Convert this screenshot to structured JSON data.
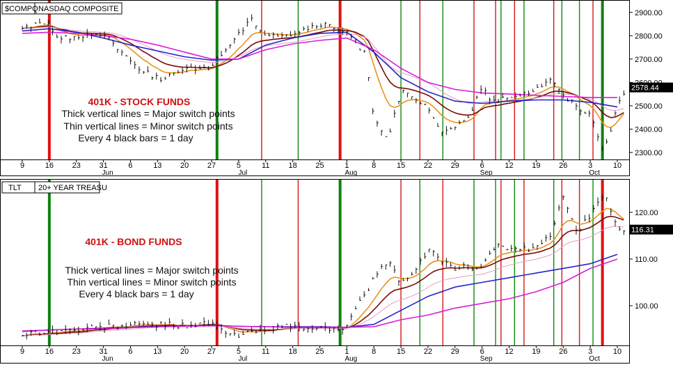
{
  "colors": {
    "background": "#ffffff",
    "frame": "#000000",
    "ma_orange": "#e8921e",
    "ma_darkred": "#7a0a0a",
    "ma_pink": "#e89ac8",
    "ma_blue": "#2424c8",
    "ma_magenta": "#d81ed8",
    "major_red": "#e01010",
    "major_green": "#108010",
    "minor_red": "#d01818",
    "minor_green": "#108a10",
    "annotation_red": "#d01010"
  },
  "x_axis": {
    "tick_labels": [
      "9",
      "16",
      "23",
      "31",
      "6",
      "13",
      "20",
      "27",
      "5",
      "11",
      "18",
      "25",
      "1",
      "8",
      "15",
      "22",
      "29",
      "6",
      "12",
      "19",
      "26",
      "3",
      "10"
    ],
    "month_labels": [
      "Jun",
      "Jul",
      "Aug",
      "Sep",
      "Oct"
    ],
    "month_label_tick_index": [
      3,
      8,
      12,
      17,
      21
    ]
  },
  "chart_data": [
    {
      "type": "line",
      "ticker": "$COMPQ",
      "title": "NASDAQ COMPOSITE",
      "last_value_label": "2578.44",
      "ylim": [
        2270,
        2950
      ],
      "y_ticks": [
        2300,
        2400,
        2500,
        2600,
        2700,
        2800,
        2900
      ],
      "y_tick_labels": [
        "2300.00",
        "2400.00",
        "2500.00",
        "2600.00",
        "2700.00",
        "2800.00",
        "2900.00"
      ],
      "daily_close_anchors": {
        "x_tick_index": [
          0,
          1,
          1.3,
          2,
          3,
          4,
          5,
          6,
          7,
          8,
          8.5,
          9,
          10,
          11,
          12,
          12.7,
          13,
          13.5,
          14,
          15,
          15.5,
          16,
          16.5,
          17,
          17.5,
          18,
          19,
          19.5,
          20,
          20.5,
          21,
          21.5,
          22,
          22.3
        ],
        "values": [
          2835,
          2855,
          2795,
          2790,
          2815,
          2690,
          2615,
          2650,
          2670,
          2810,
          2870,
          2805,
          2805,
          2850,
          2815,
          2720,
          2450,
          2360,
          2560,
          2490,
          2375,
          2410,
          2460,
          2570,
          2510,
          2540,
          2570,
          2620,
          2540,
          2500,
          2460,
          2310,
          2490,
          2570
        ]
      },
      "series": [
        {
          "type": "line",
          "color": "#2424c8",
          "y": [
            2820,
            2830,
            2815,
            2790,
            2760,
            2735,
            2710,
            2695,
            2700,
            2760,
            2790,
            2810,
            2815,
            2730,
            2620,
            2560,
            2520,
            2510,
            2520,
            2525,
            2525,
            2515,
            2495
          ]
        },
        {
          "type": "line",
          "color": "#d81ed8",
          "y": [
            2810,
            2815,
            2810,
            2800,
            2785,
            2760,
            2730,
            2700,
            2700,
            2740,
            2765,
            2780,
            2790,
            2740,
            2660,
            2600,
            2570,
            2555,
            2550,
            2545,
            2540,
            2535,
            2535
          ]
        }
      ],
      "vertical_lines": [
        {
          "x_tick_index": 1,
          "kind": "major",
          "color": "red"
        },
        {
          "x_tick_index": 7.2,
          "kind": "major",
          "color": "green"
        },
        {
          "x_tick_index": 8.85,
          "kind": "minor",
          "color": "red"
        },
        {
          "x_tick_index": 10.2,
          "kind": "minor",
          "color": "green"
        },
        {
          "x_tick_index": 11.75,
          "kind": "major",
          "color": "red"
        },
        {
          "x_tick_index": 14,
          "kind": "minor",
          "color": "green"
        },
        {
          "x_tick_index": 14.7,
          "kind": "minor",
          "color": "red"
        },
        {
          "x_tick_index": 15.55,
          "kind": "minor",
          "color": "green"
        },
        {
          "x_tick_index": 16.7,
          "kind": "minor",
          "color": "red"
        },
        {
          "x_tick_index": 17.5,
          "kind": "minor",
          "color": "red"
        },
        {
          "x_tick_index": 17.7,
          "kind": "minor",
          "color": "green"
        },
        {
          "x_tick_index": 18.2,
          "kind": "minor",
          "color": "red"
        },
        {
          "x_tick_index": 18.55,
          "kind": "minor",
          "color": "green"
        },
        {
          "x_tick_index": 19.65,
          "kind": "minor",
          "color": "red"
        },
        {
          "x_tick_index": 19.95,
          "kind": "minor",
          "color": "green"
        },
        {
          "x_tick_index": 20.6,
          "kind": "minor",
          "color": "green"
        },
        {
          "x_tick_index": 21.1,
          "kind": "minor",
          "color": "red"
        },
        {
          "x_tick_index": 21.45,
          "kind": "major",
          "color": "green"
        }
      ],
      "annotation": {
        "title": "401K - STOCK FUNDS",
        "lines": [
          "Thick vertical lines = Major switch points",
          "Thin vertical lines = Minor switch points",
          "Every 4 black bars = 1 day"
        ]
      }
    },
    {
      "type": "line",
      "ticker": "TLT",
      "title": "20+ YEAR TREASU",
      "last_value_label": "116.31",
      "ylim": [
        91.5,
        127
      ],
      "y_ticks": [
        100,
        110,
        120
      ],
      "y_tick_labels": [
        "100.00",
        "110.00",
        "120.00"
      ],
      "daily_close_anchors": {
        "x_tick_index": [
          0,
          1,
          2,
          3,
          4,
          5,
          6,
          7,
          7.5,
          8,
          9,
          10,
          11,
          12,
          13,
          13.5,
          14,
          14.5,
          15,
          16,
          17,
          17.5,
          18,
          19,
          19.5,
          20,
          20.5,
          21,
          21.5,
          22,
          22.3
        ],
        "values": [
          94,
          94.5,
          94.8,
          95.5,
          95.8,
          96,
          95.8,
          96.2,
          94.2,
          93.5,
          95.2,
          95.5,
          95,
          95.5,
          106,
          109.5,
          105,
          107,
          112,
          108,
          108.5,
          113,
          112,
          112,
          115,
          123,
          116,
          119,
          124,
          117,
          116.3
        ]
      },
      "series": [
        {
          "type": "line",
          "color": "#2424c8",
          "y": [
            94.5,
            94.8,
            95,
            95.2,
            95.4,
            95.6,
            95.7,
            95.8,
            95.6,
            95.5,
            95.5,
            95.5,
            95.4,
            96,
            99,
            102,
            104,
            105,
            106,
            107,
            108,
            109,
            111
          ]
        },
        {
          "type": "line",
          "color": "#d81ed8",
          "y": [
            94.6,
            94.8,
            95,
            95.1,
            95.3,
            95.5,
            95.6,
            95.7,
            95.6,
            95.5,
            95.4,
            95.4,
            95.4,
            95.5,
            97,
            98,
            99.5,
            100.5,
            101.5,
            103,
            105,
            108,
            110
          ]
        }
      ],
      "vertical_lines": [
        {
          "x_tick_index": 1,
          "kind": "major",
          "color": "green"
        },
        {
          "x_tick_index": 7.2,
          "kind": "major",
          "color": "red"
        },
        {
          "x_tick_index": 8.85,
          "kind": "minor",
          "color": "green"
        },
        {
          "x_tick_index": 10.2,
          "kind": "minor",
          "color": "red"
        },
        {
          "x_tick_index": 11.75,
          "kind": "major",
          "color": "green"
        },
        {
          "x_tick_index": 14,
          "kind": "minor",
          "color": "red"
        },
        {
          "x_tick_index": 14.7,
          "kind": "minor",
          "color": "green"
        },
        {
          "x_tick_index": 15.55,
          "kind": "minor",
          "color": "red"
        },
        {
          "x_tick_index": 16.7,
          "kind": "minor",
          "color": "green"
        },
        {
          "x_tick_index": 17.5,
          "kind": "minor",
          "color": "green"
        },
        {
          "x_tick_index": 17.7,
          "kind": "minor",
          "color": "red"
        },
        {
          "x_tick_index": 18.2,
          "kind": "minor",
          "color": "green"
        },
        {
          "x_tick_index": 18.55,
          "kind": "minor",
          "color": "red"
        },
        {
          "x_tick_index": 19.65,
          "kind": "minor",
          "color": "green"
        },
        {
          "x_tick_index": 19.95,
          "kind": "minor",
          "color": "red"
        },
        {
          "x_tick_index": 20.6,
          "kind": "minor",
          "color": "red"
        },
        {
          "x_tick_index": 21.1,
          "kind": "minor",
          "color": "green"
        },
        {
          "x_tick_index": 21.45,
          "kind": "major",
          "color": "red"
        }
      ],
      "annotation": {
        "title": "401K - BOND FUNDS",
        "lines": [
          "Thick vertical lines = Major switch points",
          "Thin vertical lines = Minor switch points",
          "Every 4 black bars = 1 day"
        ]
      }
    }
  ]
}
